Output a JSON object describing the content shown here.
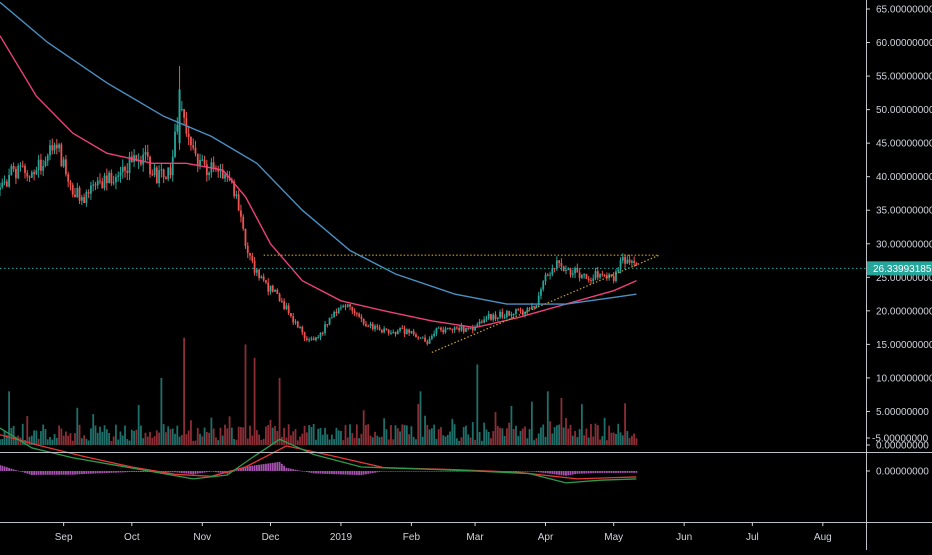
{
  "chart_data": {
    "type": "candlestick",
    "title": "",
    "price_axis": {
      "ylim": [
        -0.5,
        67
      ],
      "ticks": [
        {
          "value": 65,
          "label": "65.00000000"
        },
        {
          "value": 60,
          "label": "60.00000000"
        },
        {
          "value": 55,
          "label": "55.00000000"
        },
        {
          "value": 50,
          "label": "50.00000000"
        },
        {
          "value": 45,
          "label": "45.00000000"
        },
        {
          "value": 40,
          "label": "40.00000000"
        },
        {
          "value": 35,
          "label": "35.00000000"
        },
        {
          "value": 30,
          "label": "30.00000000"
        },
        {
          "value": 25,
          "label": "25.00000000"
        },
        {
          "value": 20,
          "label": "20.00000000"
        },
        {
          "value": 15,
          "label": "15.00000000"
        },
        {
          "value": 10,
          "label": "10.00000000"
        },
        {
          "value": 5,
          "label": "5.00000000"
        },
        {
          "value": 0,
          "label": "0.00000000"
        }
      ]
    },
    "current_price": {
      "value": 26.33993185,
      "label": "26.33993185",
      "color": "#26a69a"
    },
    "time_axis": {
      "start": "2018-08-04",
      "end": "2019-08-20",
      "labels": [
        {
          "date": "2018-09-01",
          "label": "Sep"
        },
        {
          "date": "2018-10-01",
          "label": "Oct"
        },
        {
          "date": "2018-11-01",
          "label": "Nov"
        },
        {
          "date": "2018-12-01",
          "label": "Dec"
        },
        {
          "date": "2019-01-01",
          "label": "2019"
        },
        {
          "date": "2019-02-01",
          "label": "Feb"
        },
        {
          "date": "2019-03-01",
          "label": "Mar"
        },
        {
          "date": "2019-04-01",
          "label": "Apr"
        },
        {
          "date": "2019-05-01",
          "label": "May"
        },
        {
          "date": "2019-06-01",
          "label": "Jun"
        },
        {
          "date": "2019-07-01",
          "label": "Jul"
        },
        {
          "date": "2019-08-01",
          "label": "Aug"
        }
      ]
    },
    "price_path": [
      [
        "2018-08-04",
        38
      ],
      [
        "2018-08-10",
        41
      ],
      [
        "2018-08-18",
        40
      ],
      [
        "2018-08-24",
        43
      ],
      [
        "2018-08-29",
        45
      ],
      [
        "2018-09-04",
        38
      ],
      [
        "2018-09-10",
        37
      ],
      [
        "2018-09-18",
        39
      ],
      [
        "2018-09-24",
        40
      ],
      [
        "2018-09-30",
        42
      ],
      [
        "2018-10-06",
        43
      ],
      [
        "2018-10-12",
        40
      ],
      [
        "2018-10-18",
        41
      ],
      [
        "2018-10-22",
        50
      ],
      [
        "2018-10-26",
        46
      ],
      [
        "2018-10-30",
        42
      ],
      [
        "2018-11-05",
        41
      ],
      [
        "2018-11-10",
        40
      ],
      [
        "2018-11-15",
        38
      ],
      [
        "2018-11-20",
        30
      ],
      [
        "2018-11-24",
        26
      ],
      [
        "2018-11-28",
        24
      ],
      [
        "2018-12-05",
        22
      ],
      [
        "2018-12-12",
        18
      ],
      [
        "2018-12-18",
        15.5
      ],
      [
        "2018-12-24",
        17
      ],
      [
        "2018-12-29",
        20
      ],
      [
        "2019-01-05",
        21
      ],
      [
        "2019-01-12",
        18
      ],
      [
        "2019-01-20",
        17
      ],
      [
        "2019-01-27",
        17
      ],
      [
        "2019-02-03",
        16.5
      ],
      [
        "2019-02-08",
        15
      ],
      [
        "2019-02-12",
        17
      ],
      [
        "2019-02-20",
        17.5
      ],
      [
        "2019-02-28",
        17
      ],
      [
        "2019-03-06",
        19
      ],
      [
        "2019-03-14",
        19.5
      ],
      [
        "2019-03-22",
        20
      ],
      [
        "2019-03-28",
        21
      ],
      [
        "2019-04-01",
        25
      ],
      [
        "2019-04-06",
        27
      ],
      [
        "2019-04-12",
        26
      ],
      [
        "2019-04-20",
        25
      ],
      [
        "2019-04-25",
        25.5
      ],
      [
        "2019-05-01",
        25
      ],
      [
        "2019-05-05",
        28
      ],
      [
        "2019-05-09",
        27
      ],
      [
        "2019-05-11",
        26.3
      ]
    ],
    "series": [
      {
        "name": "",
        "color": "#ec407a",
        "points": [
          [
            "2018-08-04",
            61
          ],
          [
            "2018-08-20",
            52
          ],
          [
            "2018-09-05",
            46.5
          ],
          [
            "2018-09-20",
            43.5
          ],
          [
            "2018-10-10",
            42
          ],
          [
            "2018-10-25",
            42
          ],
          [
            "2018-11-10",
            41
          ],
          [
            "2018-11-20",
            37
          ],
          [
            "2018-12-01",
            30
          ],
          [
            "2018-12-15",
            24.5
          ],
          [
            "2019-01-01",
            21.5
          ],
          [
            "2019-01-20",
            20
          ],
          [
            "2019-02-10",
            18.5
          ],
          [
            "2019-03-01",
            17.5
          ],
          [
            "2019-03-20",
            19
          ],
          [
            "2019-04-10",
            21
          ],
          [
            "2019-05-01",
            23
          ],
          [
            "2019-05-11",
            24.5
          ]
        ]
      },
      {
        "name": "",
        "color": "#4a90c2",
        "points": [
          [
            "2018-08-04",
            66
          ],
          [
            "2018-08-25",
            60
          ],
          [
            "2018-09-20",
            54
          ],
          [
            "2018-10-15",
            49
          ],
          [
            "2018-11-05",
            46
          ],
          [
            "2018-11-25",
            42
          ],
          [
            "2018-12-15",
            35
          ],
          [
            "2019-01-05",
            29
          ],
          [
            "2019-01-25",
            25.5
          ],
          [
            "2019-02-20",
            22.5
          ],
          [
            "2019-03-15",
            21
          ],
          [
            "2019-04-10",
            21
          ],
          [
            "2019-05-01",
            22
          ],
          [
            "2019-05-11",
            22.5
          ]
        ]
      }
    ],
    "trendlines": [
      {
        "name": "",
        "style": "dotted",
        "color": "#c9a227",
        "from": [
          "2018-11-28",
          28.3
        ],
        "to": [
          "2019-05-21",
          28.3
        ]
      },
      {
        "name": "",
        "style": "dotted",
        "color": "#c9a227",
        "from": [
          "2019-02-10",
          13.8
        ],
        "to": [
          "2019-05-21",
          28.3
        ]
      }
    ],
    "volume": {
      "colors": {
        "up": "#1f6f6a",
        "down": "#8b2e35"
      },
      "spikes": [
        [
          "2018-08-08",
          8
        ],
        [
          "2018-10-14",
          10
        ],
        [
          "2018-10-24",
          16
        ],
        [
          "2018-11-20",
          15
        ],
        [
          "2018-11-24",
          13
        ],
        [
          "2018-12-05",
          10
        ],
        [
          "2019-02-05",
          8
        ],
        [
          "2019-03-02",
          12
        ],
        [
          "2019-04-02",
          8
        ],
        [
          "2019-04-08",
          7
        ]
      ]
    },
    "macd": {
      "ylim": [
        -7,
        2.5
      ],
      "ticks": [
        {
          "value": 0,
          "label": "0.00000000"
        },
        {
          "value": -5,
          "label": "-5.00000000"
        }
      ],
      "macd_line": {
        "name": "",
        "color": "#2e9b4e",
        "points": [
          [
            "2018-08-04",
            -6.5
          ],
          [
            "2018-08-18",
            -3.5
          ],
          [
            "2018-09-05",
            -2
          ],
          [
            "2018-09-25",
            -0.8
          ],
          [
            "2018-10-15",
            0.4
          ],
          [
            "2018-10-28",
            1.2
          ],
          [
            "2018-11-12",
            0.6
          ],
          [
            "2018-11-22",
            -1.8
          ],
          [
            "2018-12-05",
            -4.8
          ],
          [
            "2018-12-20",
            -2.5
          ],
          [
            "2019-01-10",
            -0.6
          ],
          [
            "2019-02-05",
            -0.3
          ],
          [
            "2019-03-01",
            0
          ],
          [
            "2019-03-25",
            0.4
          ],
          [
            "2019-04-10",
            1.8
          ],
          [
            "2019-04-25",
            1.4
          ],
          [
            "2019-05-11",
            1.2
          ]
        ]
      },
      "signal_line": {
        "name": "",
        "color": "#e53935",
        "points": [
          [
            "2018-08-04",
            -5.5
          ],
          [
            "2018-08-22",
            -3.8
          ],
          [
            "2018-09-10",
            -2.2
          ],
          [
            "2018-10-01",
            -0.6
          ],
          [
            "2018-10-20",
            0.5
          ],
          [
            "2018-11-05",
            0.8
          ],
          [
            "2018-11-20",
            -0.6
          ],
          [
            "2018-12-08",
            -3.8
          ],
          [
            "2018-12-28",
            -2.3
          ],
          [
            "2019-01-20",
            -0.5
          ],
          [
            "2019-02-20",
            -0.2
          ],
          [
            "2019-03-20",
            0.2
          ],
          [
            "2019-04-15",
            1.2
          ],
          [
            "2019-05-01",
            1.0
          ],
          [
            "2019-05-11",
            0.9
          ]
        ]
      },
      "histogram_color": "#c45fd0"
    },
    "grid": false
  }
}
